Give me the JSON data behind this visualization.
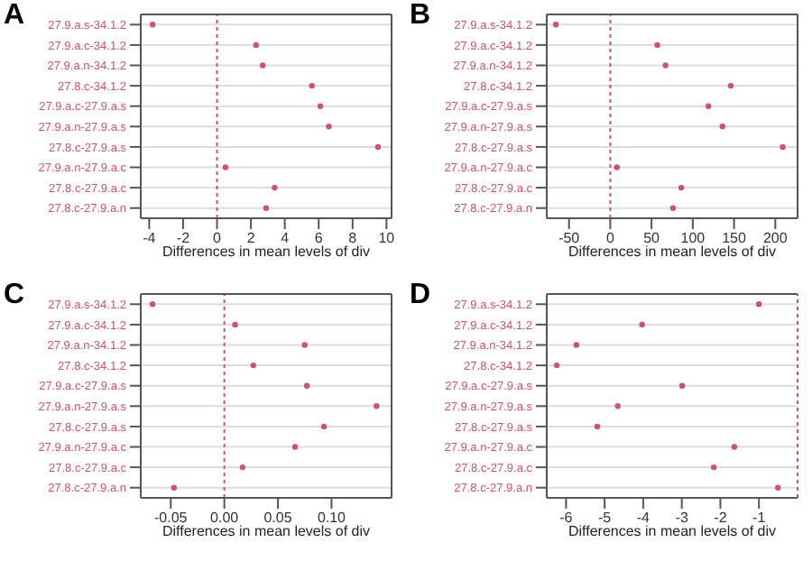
{
  "chart_data": [
    {
      "type": "scatter",
      "orientation": "horizontal",
      "title": "A",
      "xlabel": "Differences in mean levels of div",
      "categories": [
        "27.9.a.s-34.1.2",
        "27.9.a.c-34.1.2",
        "27.9.a.n-34.1.2",
        "27.8.c-34.1.2",
        "27.9.a.c-27.9.a.s",
        "27.9.a.n-27.9.a.s",
        "27.8.c-27.9.a.s",
        "27.9.a.n-27.9.a.c",
        "27.8.c-27.9.a.c",
        "27.8.c-27.9.a.n"
      ],
      "values": [
        -3.8,
        2.3,
        2.7,
        5.6,
        6.1,
        6.6,
        9.5,
        0.5,
        3.4,
        2.9
      ],
      "color": "#d0506e",
      "xlim": [
        -4.5,
        10.3
      ],
      "xticks": [
        -4,
        -2,
        0,
        2,
        4,
        6,
        8,
        10
      ],
      "grid": "y",
      "marker": "circle",
      "ref_lines": [
        {
          "axis": "x",
          "value": 0,
          "color": "#d0506e",
          "line_style": "dotted"
        }
      ]
    },
    {
      "type": "scatter",
      "orientation": "horizontal",
      "title": "B",
      "xlabel": "Differences in mean levels of div",
      "categories": [
        "27.9.a.s-34.1.2",
        "27.9.a.c-34.1.2",
        "27.9.a.n-34.1.2",
        "27.8.c-34.1.2",
        "27.9.a.c-27.9.a.s",
        "27.9.a.n-27.9.a.s",
        "27.8.c-27.9.a.s",
        "27.9.a.n-27.9.a.c",
        "27.8.c-27.9.a.c",
        "27.8.c-27.9.a.n"
      ],
      "values": [
        -66,
        57,
        67,
        146,
        119,
        136,
        209,
        8,
        86,
        76
      ],
      "color": "#d0506e",
      "xlim": [
        -77,
        227
      ],
      "xticks": [
        -50,
        0,
        50,
        100,
        150,
        200
      ],
      "grid": "y",
      "marker": "circle",
      "ref_lines": [
        {
          "axis": "x",
          "value": 0,
          "color": "#d0506e",
          "line_style": "dotted"
        }
      ]
    },
    {
      "type": "scatter",
      "orientation": "horizontal",
      "title": "C",
      "xlabel": "Differences in mean levels of div",
      "categories": [
        "27.9.a.s-34.1.2",
        "27.9.a.c-34.1.2",
        "27.9.a.n-34.1.2",
        "27.8.c-34.1.2",
        "27.9.a.c-27.9.a.s",
        "27.9.a.n-27.9.a.s",
        "27.8.c-27.9.a.s",
        "27.9.a.n-27.9.a.c",
        "27.8.c-27.9.a.c",
        "27.8.c-27.9.a.n"
      ],
      "values": [
        -0.067,
        0.01,
        0.075,
        0.027,
        0.077,
        0.142,
        0.093,
        0.066,
        0.017,
        -0.047
      ],
      "color": "#d0506e",
      "xlim": [
        -0.078,
        0.156
      ],
      "xticks": [
        {
          "value": -0.05,
          "label": "-0.05"
        },
        {
          "value": 0,
          "label": "0.00"
        },
        {
          "value": 0.05,
          "label": "0.05"
        },
        {
          "value": 0.1,
          "label": "0.10"
        }
      ],
      "grid": "y",
      "marker": "circle",
      "ref_lines": [
        {
          "axis": "x",
          "value": 0,
          "color": "#d0506e",
          "line_style": "dotted"
        }
      ]
    },
    {
      "type": "scatter",
      "orientation": "horizontal",
      "title": "D",
      "xlabel": "Differences in mean levels of div",
      "categories": [
        "27.9.a.s-34.1.2",
        "27.9.a.c-34.1.2",
        "27.9.a.n-34.1.2",
        "27.8.c-34.1.2",
        "27.9.a.c-27.9.a.s",
        "27.9.a.n-27.9.a.s",
        "27.8.c-27.9.a.s",
        "27.9.a.n-27.9.a.c",
        "27.8.c-27.9.a.c",
        "27.8.c-27.9.a.n"
      ],
      "values": [
        -1.0,
        -4.03,
        -5.73,
        -6.24,
        -2.99,
        -4.66,
        -5.19,
        -1.64,
        -2.17,
        -0.51
      ],
      "color": "#d0506e",
      "xlim": [
        -6.5,
        0
      ],
      "xticks": [
        -6,
        -5,
        -4,
        -3,
        -2,
        -1
      ],
      "grid": "y",
      "marker": "circle",
      "ref_lines": [
        {
          "axis": "x",
          "value": 0,
          "color": "#d0506e",
          "line_style": "dotted"
        }
      ]
    }
  ]
}
